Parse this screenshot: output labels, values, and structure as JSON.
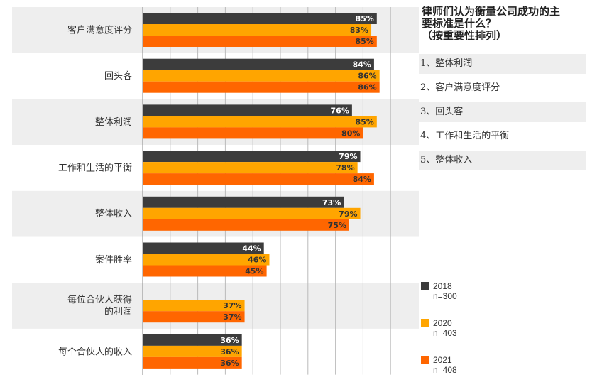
{
  "chart_data": {
    "type": "bar",
    "orientation": "horizontal",
    "categories": [
      "客户满意度评分",
      "回头客",
      "整体利润",
      "工作和生活的平衡",
      "整体收入",
      "案件胜率",
      "每位合伙人获得的利润",
      "每个合伙人的收入"
    ],
    "category_lines": [
      [
        "客户满意度评分"
      ],
      [
        "回头客"
      ],
      [
        "整体利润"
      ],
      [
        "工作和生活的平衡"
      ],
      [
        "整体收入"
      ],
      [
        "案件胜率"
      ],
      [
        "每位合伙人获得",
        "的利润"
      ],
      [
        "每个合伙人的收入"
      ]
    ],
    "series": [
      {
        "name": "2018",
        "sample": "n=300",
        "color": "#3c3c3c",
        "label_color": "#ffffff",
        "values": [
          85,
          84,
          76,
          79,
          73,
          44,
          null,
          36
        ]
      },
      {
        "name": "2020",
        "sample": "n=403",
        "color": "#ffa500",
        "label_color": "#333333",
        "values": [
          83,
          86,
          85,
          78,
          79,
          46,
          37,
          36
        ]
      },
      {
        "name": "2021",
        "sample": "n=408",
        "color": "#ff6600",
        "label_color": "#333333",
        "values": [
          85,
          86,
          80,
          84,
          75,
          45,
          37,
          36
        ]
      }
    ],
    "value_suffix": "%",
    "xlim": [
      0,
      90
    ],
    "grid": true,
    "band_colors": [
      "#eeeeee",
      "#ffffff"
    ],
    "legend_position": "bottom-right"
  },
  "side_panel": {
    "title_lines": [
      "律师们认为衡量公司成功的主",
      "要标准是什么？",
      "（按重要性排列）"
    ],
    "ranking": [
      "1、整体利润",
      "2、客户满意度评分",
      "3、回头客",
      "4、工作和生活的平衡",
      "5、整体收入"
    ]
  }
}
